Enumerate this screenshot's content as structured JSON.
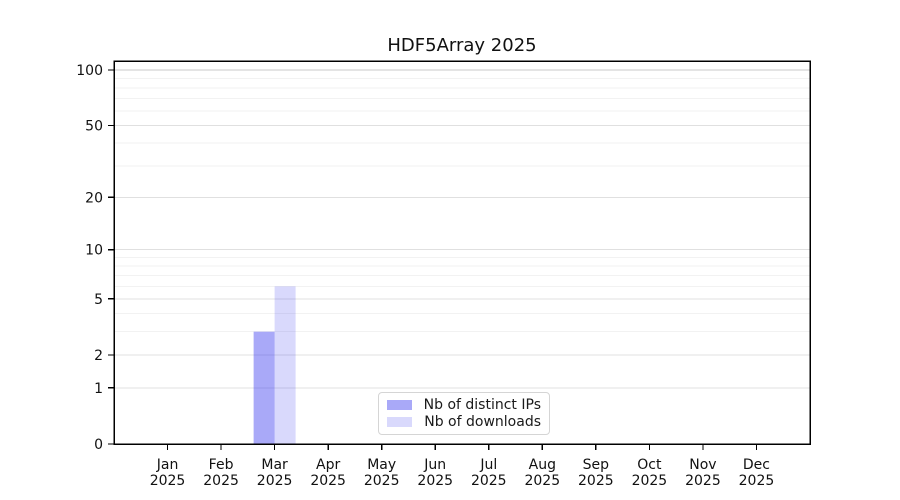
{
  "title": "HDF5Array 2025",
  "colors": {
    "background": "#ffffff",
    "axis": "#000000",
    "text": "#111111",
    "grid_minor": "#f2f2f2",
    "grid_major": "#e0e0e0",
    "grid_top": "#c9c9c9",
    "bar_distinct_ips": "rgba(64,64,240,0.45)",
    "bar_downloads": "rgba(64,64,240,0.2)"
  },
  "chart_data": {
    "type": "bar",
    "title": "HDF5Array 2025",
    "xlabel": "",
    "ylabel": "",
    "yscale": "log1p",
    "ylim": [
      0,
      112
    ],
    "grid": true,
    "legend_position": "bottom-center-inside",
    "categories": [
      {
        "month": "Jan",
        "year": "2025"
      },
      {
        "month": "Feb",
        "year": "2025"
      },
      {
        "month": "Mar",
        "year": "2025"
      },
      {
        "month": "Apr",
        "year": "2025"
      },
      {
        "month": "May",
        "year": "2025"
      },
      {
        "month": "Jun",
        "year": "2025"
      },
      {
        "month": "Jul",
        "year": "2025"
      },
      {
        "month": "Aug",
        "year": "2025"
      },
      {
        "month": "Sep",
        "year": "2025"
      },
      {
        "month": "Oct",
        "year": "2025"
      },
      {
        "month": "Nov",
        "year": "2025"
      },
      {
        "month": "Dec",
        "year": "2025"
      }
    ],
    "series": [
      {
        "name": "Nb of distinct IPs",
        "color": "rgba(64,64,240,0.45)",
        "values": [
          0,
          0,
          3,
          0,
          0,
          0,
          0,
          0,
          0,
          0,
          0,
          0
        ]
      },
      {
        "name": "Nb of downloads",
        "color": "rgba(64,64,240,0.2)",
        "values": [
          0,
          0,
          6,
          0,
          0,
          0,
          0,
          0,
          0,
          0,
          0,
          0
        ]
      }
    ],
    "major_yticks": [
      0,
      1,
      2,
      5,
      10,
      20,
      50,
      100
    ],
    "minor_yticks": [
      3,
      4,
      6,
      7,
      8,
      9,
      30,
      40,
      60,
      70,
      80,
      90
    ]
  }
}
